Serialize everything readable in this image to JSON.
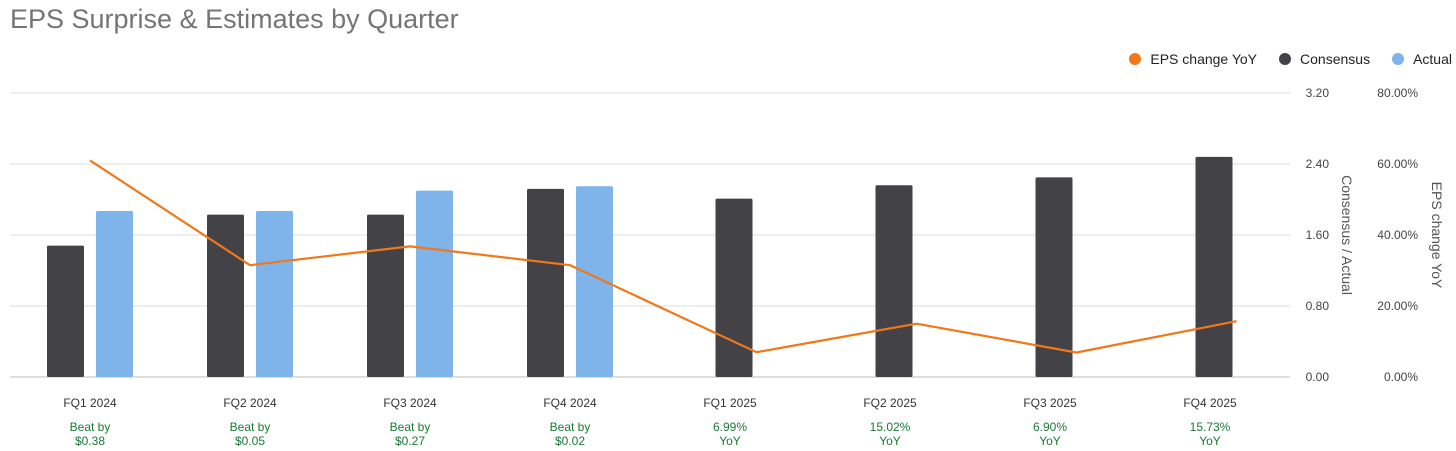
{
  "chart_data": {
    "type": "bar",
    "title": "EPS Surprise & Estimates by Quarter",
    "categories": [
      "FQ1 2024",
      "FQ2 2024",
      "FQ3 2024",
      "FQ4 2024",
      "FQ1 2025",
      "FQ2 2025",
      "FQ3 2025",
      "FQ4 2025"
    ],
    "series": [
      {
        "name": "Consensus",
        "kind": "bar",
        "axis": "left",
        "color": "#424247",
        "values": [
          1.48,
          1.83,
          1.83,
          2.12,
          2.01,
          2.16,
          2.25,
          2.48
        ]
      },
      {
        "name": "Actual",
        "kind": "bar",
        "axis": "left",
        "color": "#7fb4eb",
        "values": [
          1.87,
          1.87,
          2.1,
          2.15,
          null,
          null,
          null,
          null
        ]
      },
      {
        "name": "EPS change YoY",
        "kind": "line",
        "axis": "right",
        "color": "#f07818",
        "values": [
          61.0,
          31.5,
          36.8,
          31.5,
          6.99,
          15.02,
          6.9,
          15.73
        ]
      }
    ],
    "left_axis": {
      "label": "Consensus / Actual",
      "ylim": [
        0,
        3.2
      ],
      "ticks": [
        "0.00",
        "0.80",
        "1.60",
        "2.40",
        "3.20"
      ]
    },
    "right_axis": {
      "label": "EPS change YoY",
      "ylim": [
        0,
        80
      ],
      "ticks": [
        "0.00%",
        "20.00%",
        "40.00%",
        "60.00%",
        "80.00%"
      ]
    },
    "annotations": [
      [
        "Beat by",
        "$0.38"
      ],
      [
        "Beat by",
        "$0.05"
      ],
      [
        "Beat by",
        "$0.27"
      ],
      [
        "Beat by",
        "$0.02"
      ],
      [
        "6.99%",
        "YoY"
      ],
      [
        "15.02%",
        "YoY"
      ],
      [
        "6.90%",
        "YoY"
      ],
      [
        "15.73%",
        "YoY"
      ]
    ],
    "annotation_color": "#1a7a35",
    "grid": true,
    "legend_position": "top-right"
  },
  "legend": [
    {
      "name": "EPS change YoY",
      "color": "#f07818"
    },
    {
      "name": "Consensus",
      "color": "#424247"
    },
    {
      "name": "Actual",
      "color": "#7fb4eb"
    }
  ]
}
